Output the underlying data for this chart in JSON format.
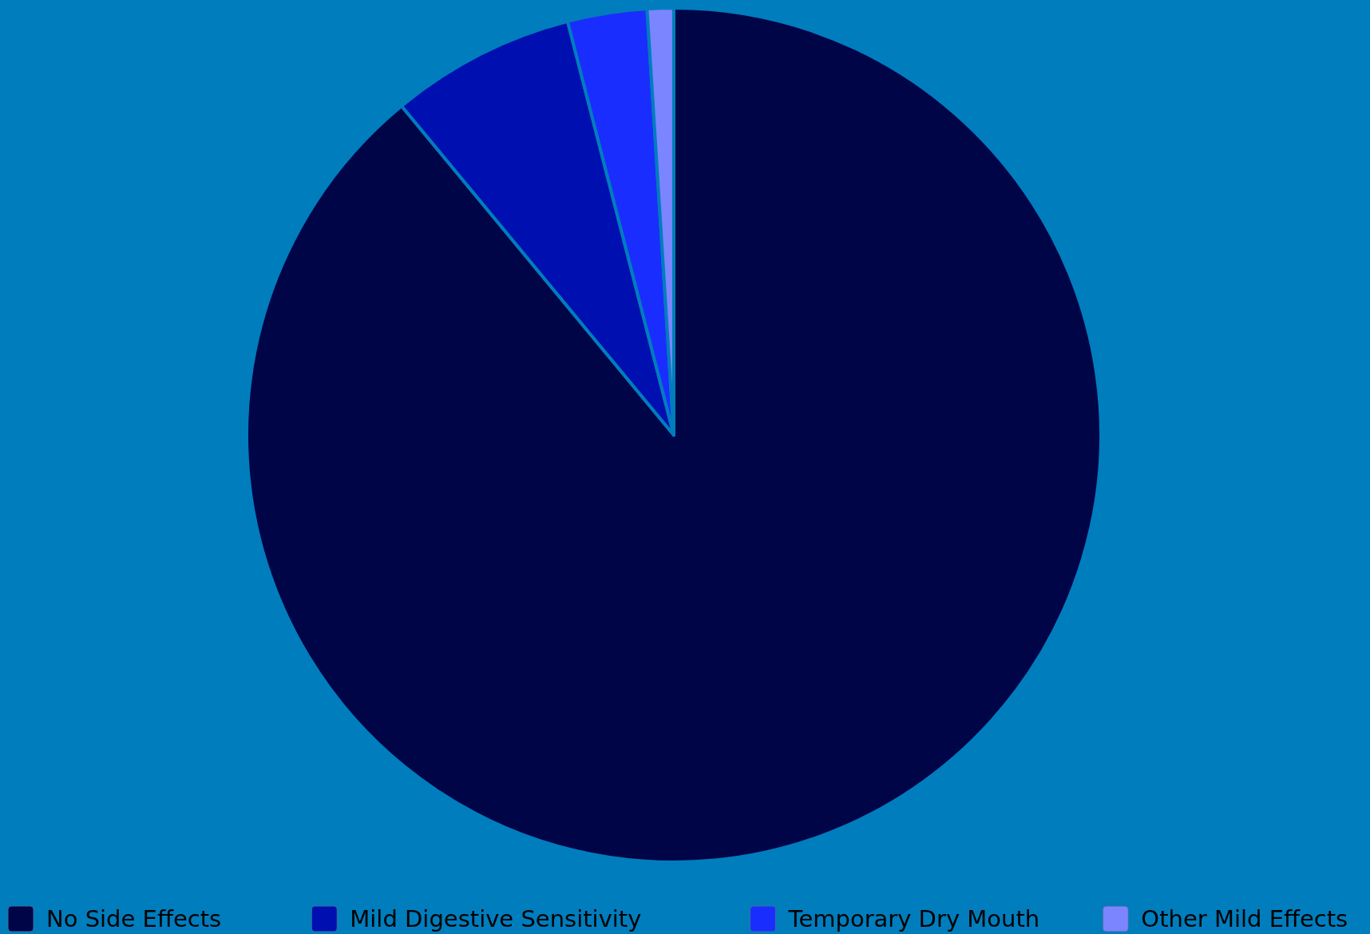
{
  "chart_data": {
    "type": "pie",
    "categories": [
      "No Side Effects",
      "Mild Digestive Sensitivity",
      "Temporary Dry Mouth",
      "Other Mild Effects"
    ],
    "values": [
      89,
      7,
      3,
      1
    ],
    "colors": [
      "#000548",
      "#0010b0",
      "#1a2dff",
      "#7b85ff"
    ],
    "legend": "bottom"
  }
}
